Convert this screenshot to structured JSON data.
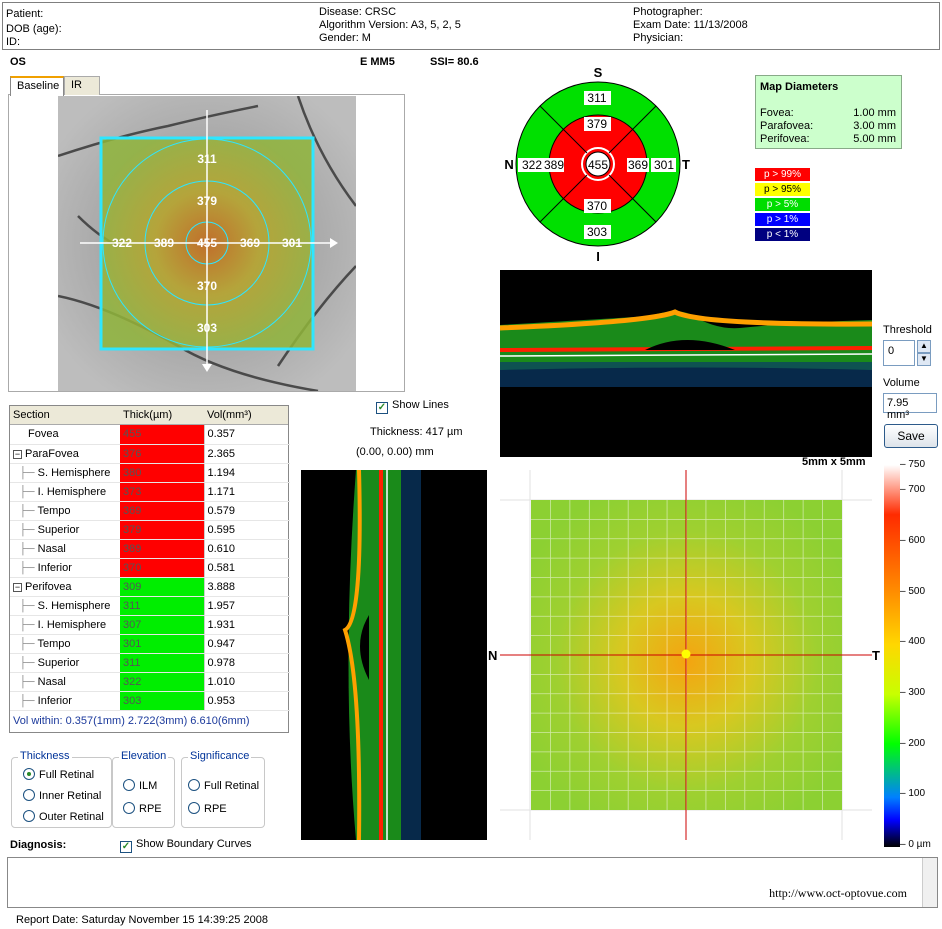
{
  "header": {
    "patient_label": "Patient:",
    "dob_label": "DOB (age):",
    "id_label": "ID:",
    "disease": "Disease: CRSC",
    "algorithm": "Algorithm Version: A3, 5, 2, 5",
    "gender": "Gender: M",
    "photographer": "Photographer:",
    "exam_date": "Exam Date: 11/13/2008",
    "physician": "Physician:"
  },
  "scan": {
    "eye": "OS",
    "protocol": "E MM5",
    "ssi": "SSI= 80.6"
  },
  "tabs": [
    "Baseline",
    "IR"
  ],
  "fundus_values": {
    "sup_outer": "311",
    "sup_inner": "379",
    "nasal_outer": "322",
    "nasal_inner": "389",
    "center": "455",
    "temp_inner": "369",
    "temp_outer": "301",
    "inf_inner": "370",
    "inf_outer": "303"
  },
  "sector_map": {
    "s_label": "S",
    "i_label": "I",
    "n_label": "N",
    "t_label": "T",
    "sup_outer": "311",
    "sup_inner": "379",
    "nasal_outer": "322",
    "nasal_inner": "389",
    "center": "455",
    "temp_inner": "369",
    "temp_outer": "301",
    "inf_inner": "370",
    "inf_outer": "303",
    "colors": {
      "red": "#ff0000",
      "green": "#00e000"
    }
  },
  "diameters": {
    "title": "Map Diameters",
    "rows": [
      {
        "label": "Fovea:",
        "value": "1.00 mm"
      },
      {
        "label": "Parafovea:",
        "value": "3.00 mm"
      },
      {
        "label": "Perifovea:",
        "value": "5.00 mm"
      }
    ]
  },
  "legend": [
    {
      "label": "p > 99%",
      "bg": "#ff0000",
      "fg": "#ffffff"
    },
    {
      "label": "p > 95%",
      "bg": "#ffff00",
      "fg": "#000000"
    },
    {
      "label": "p > 5%",
      "bg": "#00dd00",
      "fg": "#ffffff"
    },
    {
      "label": "p > 1%",
      "bg": "#0000ff",
      "fg": "#ffffff"
    },
    {
      "label": "p < 1%",
      "bg": "#000080",
      "fg": "#ffffff"
    }
  ],
  "table": {
    "headers": [
      "Section",
      "Thick(µm)",
      "Vol(mm³)"
    ],
    "rows": [
      {
        "name": "Fovea",
        "thick": "455",
        "vol": "0.357",
        "color": "#ff0000"
      },
      {
        "name": "ParaFovea",
        "thick": "376",
        "vol": "2.365",
        "color": "#ff0000"
      },
      {
        "name": "S. Hemisphere",
        "thick": "380",
        "vol": "1.194",
        "color": "#ff0000"
      },
      {
        "name": "I. Hemisphere",
        "thick": "373",
        "vol": "1.171",
        "color": "#ff0000"
      },
      {
        "name": "Tempo",
        "thick": "369",
        "vol": "0.579",
        "color": "#ff0000"
      },
      {
        "name": "Superior",
        "thick": "379",
        "vol": "0.595",
        "color": "#ff0000"
      },
      {
        "name": "Nasal",
        "thick": "389",
        "vol": "0.610",
        "color": "#ff0000"
      },
      {
        "name": "Inferior",
        "thick": "370",
        "vol": "0.581",
        "color": "#ff0000"
      },
      {
        "name": "Perifovea",
        "thick": "309",
        "vol": "3.888",
        "color": "#00ee00"
      },
      {
        "name": "S. Hemisphere",
        "thick": "311",
        "vol": "1.957",
        "color": "#00ee00"
      },
      {
        "name": "I. Hemisphere",
        "thick": "307",
        "vol": "1.931",
        "color": "#00ee00"
      },
      {
        "name": "Tempo",
        "thick": "301",
        "vol": "0.947",
        "color": "#00ee00"
      },
      {
        "name": "Superior",
        "thick": "311",
        "vol": "0.978",
        "color": "#00ee00"
      },
      {
        "name": "Nasal",
        "thick": "322",
        "vol": "1.010",
        "color": "#00ee00"
      },
      {
        "name": "Inferior",
        "thick": "303",
        "vol": "0.953",
        "color": "#00ee00"
      }
    ],
    "footer": "Vol within: 0.357(1mm) 2.722(3mm) 6.610(6mm)"
  },
  "controls": {
    "show_lines": "Show Lines",
    "thickness_readout": "Thickness: 417 µm",
    "coords": "(0.00, 0.00) mm",
    "threshold_label": "Threshold",
    "threshold_value": "0",
    "volume_label": "Volume",
    "volume_value": "7.95 mm³",
    "save": "Save",
    "map_size": "5mm x 5mm",
    "show_boundary": "Show Boundary Curves"
  },
  "groups": {
    "thickness": {
      "title": "Thickness",
      "options": [
        "Full Retinal",
        "Inner Retinal",
        "Outer Retinal"
      ]
    },
    "elevation": {
      "title": "Elevation",
      "options": [
        "ILM",
        "RPE"
      ]
    },
    "significance": {
      "title": "Significance",
      "options": [
        "Full Retinal",
        "RPE"
      ]
    }
  },
  "map": {
    "n_label": "N",
    "t_label": "T"
  },
  "colorbar": {
    "ticks": [
      "750",
      "700",
      "600",
      "500",
      "400",
      "300",
      "200",
      "100",
      "0 µm"
    ],
    "values": [
      750,
      700,
      600,
      500,
      400,
      300,
      200,
      100,
      0
    ]
  },
  "footer": {
    "diagnosis_label": "Diagnosis:",
    "url": "http://www.oct-optovue.com",
    "report_date": "Report Date: Saturday November 15 14:39:25 2008"
  }
}
